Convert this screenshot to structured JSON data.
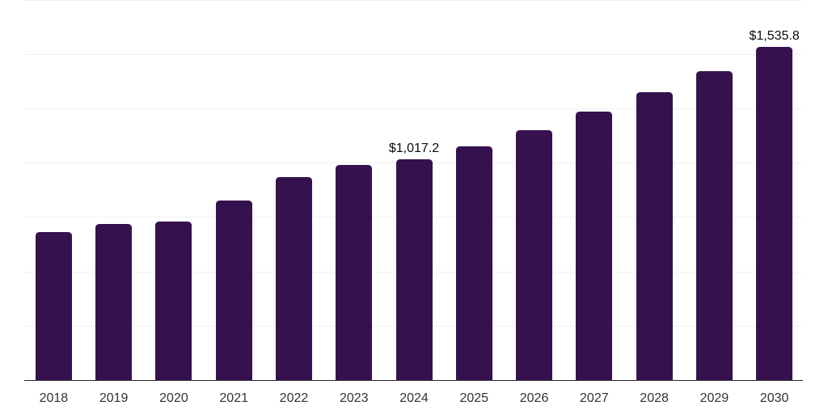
{
  "chart_data": {
    "type": "bar",
    "title": "",
    "xlabel": "",
    "ylabel": "",
    "categories": [
      "2018",
      "2019",
      "2020",
      "2021",
      "2022",
      "2023",
      "2024",
      "2025",
      "2026",
      "2027",
      "2028",
      "2029",
      "2030"
    ],
    "values": [
      683,
      721,
      731,
      826,
      937,
      991,
      1017.2,
      1078,
      1153,
      1237,
      1327,
      1424,
      1535.8
    ],
    "value_labels": [
      "",
      "",
      "",
      "",
      "",
      "",
      "$1,017.2",
      "",
      "",
      "",
      "",
      "",
      "$1,535.8"
    ],
    "ylim": [
      0,
      1750
    ],
    "gridline_interval": 250,
    "grid": "horizontal",
    "legend_position": "none",
    "colors": {
      "bar": "#35124e",
      "axis_line": "#2b2b2b",
      "gridline": "#f0f0f0",
      "tick_label": "#333333",
      "value_label": "#0a0a0a",
      "background": "#ffffff"
    }
  }
}
